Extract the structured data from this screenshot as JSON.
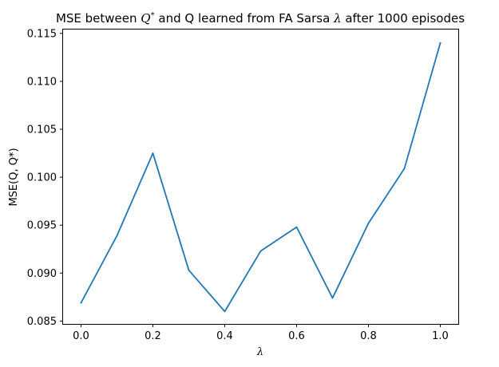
{
  "chart_data": {
    "type": "line",
    "title": {
      "prefix": "MSE between ",
      "q_star": "Q",
      "star": "*",
      "middle": " and Q learned from FA Sarsa ",
      "lambda": "λ",
      "suffix": " after 1000 episodes"
    },
    "xlabel": "λ",
    "ylabel": "MSE(Q, Q*)",
    "xlim": [
      -0.05,
      1.05
    ],
    "ylim": [
      0.0847,
      0.1154
    ],
    "xticks": [
      0.0,
      0.2,
      0.4,
      0.6,
      0.8,
      1.0
    ],
    "xtick_labels": [
      "0.0",
      "0.2",
      "0.4",
      "0.6",
      "0.8",
      "1.0"
    ],
    "yticks": [
      0.085,
      0.09,
      0.095,
      0.1,
      0.105,
      0.11,
      0.115
    ],
    "ytick_labels": [
      "0.085",
      "0.090",
      "0.095",
      "0.100",
      "0.105",
      "0.110",
      "0.115"
    ],
    "grid": false,
    "series": [
      {
        "color": "#1f77b4",
        "x": [
          0.0,
          0.1,
          0.2,
          0.3,
          0.4,
          0.5,
          0.6,
          0.7,
          0.8,
          0.9,
          1.0
        ],
        "y": [
          0.0869,
          0.0939,
          0.1025,
          0.0903,
          0.086,
          0.0923,
          0.0948,
          0.0874,
          0.0952,
          0.1009,
          0.114
        ]
      }
    ]
  }
}
